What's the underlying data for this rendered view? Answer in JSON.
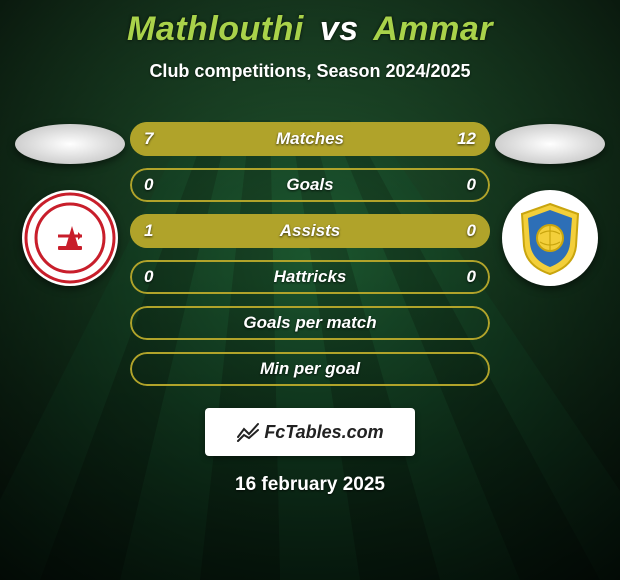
{
  "background": {
    "gradient_top": "#2a5a3a",
    "gradient_bottom": "#0c2a16",
    "stripe_dark": "#0f3a1f",
    "stripe_light": "#1a6638",
    "vignette_color": "#061a0c"
  },
  "title": {
    "player1": "Mathlouthi",
    "vs": "vs",
    "player2": "Ammar",
    "player1_color": "#a9d24a",
    "vs_color": "#ffffff",
    "player2_color": "#a9d24a"
  },
  "subtitle": "Club competitions, Season 2024/2025",
  "clubs": {
    "left": {
      "bg": "#ffffff",
      "accent": "#c81e2b",
      "inner": "#ffffff"
    },
    "right": {
      "bg": "#ffffff",
      "shield_outer": "#f3cf3a",
      "shield_mid": "#2d6fb7",
      "ball": "#f3cf3a"
    }
  },
  "stats": {
    "accent_color": "#b0a32a",
    "text_color": "#ffffff",
    "rows": [
      {
        "label": "Matches",
        "left": "7",
        "right": "12",
        "left_pct": 36.8,
        "right_pct": 63.2
      },
      {
        "label": "Goals",
        "left": "0",
        "right": "0",
        "left_pct": 0,
        "right_pct": 0
      },
      {
        "label": "Assists",
        "left": "1",
        "right": "0",
        "left_pct": 100,
        "right_pct": 0
      },
      {
        "label": "Hattricks",
        "left": "0",
        "right": "0",
        "left_pct": 0,
        "right_pct": 0
      },
      {
        "label": "Goals per match",
        "left": "",
        "right": "",
        "left_pct": 0,
        "right_pct": 0
      },
      {
        "label": "Min per goal",
        "left": "",
        "right": "",
        "left_pct": 0,
        "right_pct": 0
      }
    ]
  },
  "brand": {
    "text": "FcTables.com",
    "icon_color": "#222222"
  },
  "date": "16 february 2025"
}
